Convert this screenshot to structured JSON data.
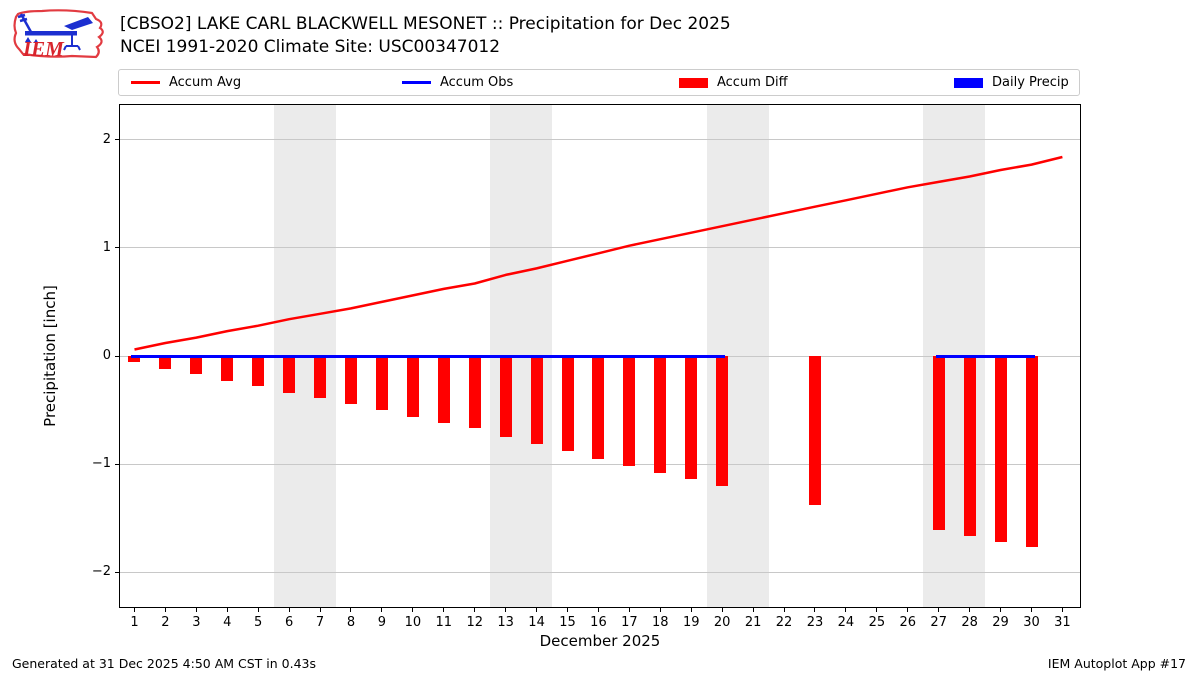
{
  "header": {
    "title_line1": "[CBSO2] LAKE CARL BLACKWELL MESONET :: Precipitation for Dec 2025",
    "title_line2": "NCEI 1991-2020 Climate Site: USC00347012",
    "logo_text": "IEM"
  },
  "legend": {
    "items": [
      {
        "label": "Accum Avg",
        "swatch": "line",
        "color": "#ff0000"
      },
      {
        "label": "Accum Obs",
        "swatch": "line",
        "color": "#0000ff"
      },
      {
        "label": "Accum Diff",
        "swatch": "patch",
        "color": "#ff0000"
      },
      {
        "label": "Daily Precip",
        "swatch": "patch",
        "color": "#0000ff"
      }
    ]
  },
  "chart_data": {
    "type": "line+bar",
    "title": "[CBSO2] LAKE CARL BLACKWELL MESONET :: Precipitation for Dec 2025",
    "subtitle": "NCEI 1991-2020 Climate Site: USC00347012",
    "xlabel": "December 2025",
    "ylabel": "Precipitation [inch]",
    "xlim": [
      0.5,
      31.6
    ],
    "ylim": [
      -2.33,
      2.33
    ],
    "yticks": [
      -2,
      -1,
      0,
      1,
      2
    ],
    "xticks": [
      1,
      2,
      3,
      4,
      5,
      6,
      7,
      8,
      9,
      10,
      11,
      12,
      13,
      14,
      15,
      16,
      17,
      18,
      19,
      20,
      21,
      22,
      23,
      24,
      25,
      26,
      27,
      28,
      29,
      30,
      31
    ],
    "grid": true,
    "legend_position": "top",
    "weekend_bands": [
      [
        5.5,
        7.5
      ],
      [
        12.5,
        14.5
      ],
      [
        19.5,
        21.5
      ],
      [
        26.5,
        28.5
      ]
    ],
    "band_color": "#ebebeb",
    "grid_color": "#c8c8c8",
    "days": [
      1,
      2,
      3,
      4,
      5,
      6,
      7,
      8,
      9,
      10,
      11,
      12,
      13,
      14,
      15,
      16,
      17,
      18,
      19,
      20,
      21,
      22,
      23,
      24,
      25,
      26,
      27,
      28,
      29,
      30,
      31
    ],
    "series": [
      {
        "name": "Accum Avg",
        "type": "line",
        "color": "#ff0000",
        "values": [
          0.06,
          0.12,
          0.17,
          0.23,
          0.28,
          0.34,
          0.39,
          0.44,
          0.5,
          0.56,
          0.62,
          0.67,
          0.75,
          0.81,
          0.88,
          0.95,
          1.02,
          1.08,
          1.14,
          1.2,
          1.26,
          1.32,
          1.38,
          1.44,
          1.5,
          1.56,
          1.61,
          1.66,
          1.72,
          1.77,
          1.84
        ]
      },
      {
        "name": "Accum Obs",
        "type": "line",
        "color": "#0000ff",
        "value": 0,
        "segments": [
          [
            1,
            20
          ],
          [
            27,
            30
          ]
        ]
      },
      {
        "name": "Accum Diff",
        "type": "bar",
        "color": "#ff0000",
        "values": [
          -0.06,
          -0.12,
          -0.17,
          -0.23,
          -0.28,
          -0.34,
          -0.39,
          -0.44,
          -0.5,
          -0.56,
          -0.62,
          -0.67,
          -0.75,
          -0.81,
          -0.88,
          -0.95,
          -1.02,
          -1.08,
          -1.14,
          -1.2,
          null,
          null,
          -1.38,
          null,
          null,
          null,
          -1.61,
          -1.66,
          -1.72,
          -1.77,
          null
        ]
      },
      {
        "name": "Daily Precip",
        "type": "bar",
        "color": "#0000ff",
        "values": [
          0,
          0,
          0,
          0,
          0,
          0,
          0,
          0,
          0,
          0,
          0,
          0,
          0,
          0,
          0,
          0,
          0,
          0,
          0,
          0,
          null,
          null,
          0,
          null,
          null,
          null,
          0,
          0,
          0,
          0,
          null
        ]
      }
    ]
  },
  "footer": {
    "left": "Generated at 31 Dec 2025 4:50 AM CST in 0.43s",
    "right": "IEM Autoplot App #17"
  }
}
